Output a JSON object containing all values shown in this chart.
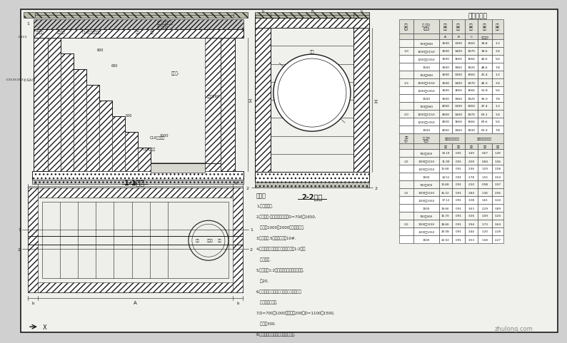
{
  "bg_color": "#d0d0d0",
  "paper_color": "#f0f0ec",
  "line_color": "#1a1a1a",
  "title": "工程数量表",
  "watermark": "zhulong.com",
  "note_title": "说明：",
  "notes": [
    "1.单位：毫米.",
    "2.适用条件:适用于跌落管径为D=700～1650,",
    "   跌差为1000～2000的圆、拱水管.",
    "3.井筒用厚.5水泥砂浆砌砖10#.",
    "4.抹面、勾缝、底座、筑三角灰均用1:2防水",
    "   水泥砂浆.",
    "5.井外墙用1:2防水水泥砂浆抹缝至井顶部,",
    "   厚20.",
    "6.跌落管管底以下超范围分用级配砂石，混",
    "   凝土或砌砖填实.",
    "7.D=700～1000，井盖厚200；D=1100～1500,",
    "   井盖厚300.",
    "8.爬梯需在安放踏步的同侧加设脚窝."
  ],
  "top_table_data": [
    [
      "",
      "700～900",
      "3600",
      "1300",
      "3060",
      "34.8",
      "1.2"
    ],
    [
      "1.0",
      "1000～1150",
      "3600",
      "1400",
      "3370",
      "39.6",
      "3.4"
    ],
    [
      "",
      "1200～1350",
      "3600",
      "1660",
      "3666",
      "44.6",
      "5.6"
    ],
    [
      "",
      "1500",
      "3600",
      "1960",
      "3920",
      "48.6",
      "7.8"
    ],
    [
      "",
      "700～900",
      "3600",
      "1300",
      "3060",
      "41.4",
      "1.2"
    ],
    [
      "1.5",
      "1000～1150",
      "3600",
      "1400",
      "3370",
      "46.3",
      "3.4"
    ],
    [
      "",
      "1200～1350",
      "3600",
      "1660",
      "3666",
      "51.8",
      "5.6"
    ],
    [
      "",
      "1500",
      "3600",
      "1960",
      "3920",
      "56.0",
      "7.8"
    ],
    [
      "",
      "700～900",
      "4000",
      "1300",
      "3060",
      "47.4",
      "1.2"
    ],
    [
      "2.0",
      "1000～1150",
      "4000",
      "1400",
      "3370",
      "63.1",
      "3.4"
    ],
    [
      "",
      "1200～1350",
      "4000",
      "1660",
      "3666",
      "69.6",
      "5.6"
    ],
    [
      "",
      "1500",
      "4000",
      "1960",
      "3930",
      "63.9",
      "7.8"
    ]
  ],
  "bot_table_data": [
    [
      "",
      "700～900",
      "10.19",
      "0.91",
      "1.69",
      "0.67",
      "1.49"
    ],
    [
      "1.0",
      "1000～1150",
      "11.99",
      "0.91",
      "2.09",
      "0.84",
      "1.94"
    ],
    [
      "",
      "1200～1350",
      "13.68",
      "0.91",
      "2.96",
      "1.09",
      "2.08"
    ],
    [
      "",
      "1500",
      "14.51",
      "0.91",
      "2.78",
      "1.55",
      "3.54"
    ],
    [
      "",
      "700～900",
      "13.68",
      "0.91",
      "2.50",
      "0.98",
      "3.97"
    ],
    [
      "1.5",
      "1000～1150",
      "16.22",
      "0.91",
      "2.84",
      "1.36",
      "2.96"
    ],
    [
      "",
      "1200～1350",
      "17.12",
      "0.91",
      "3.08",
      "1.61",
      "3.24"
    ],
    [
      "",
      "1500",
      "19.66",
      "0.91",
      "3.63",
      "2.29",
      "3.89"
    ],
    [
      "",
      "700～900",
      "16.70",
      "0.91",
      "3.06",
      "1.09",
      "3.20"
    ],
    [
      "2.0",
      "1000～1150",
      "18.66",
      "0.91",
      "3.94",
      "1.73",
      "3.64"
    ],
    [
      "",
      "1200～1350",
      "20.08",
      "0.91",
      "3.44",
      "1.20",
      "2.28"
    ],
    [
      "",
      "1500",
      "22.02",
      "0.91",
      "3.53",
      "1.58",
      "2.27"
    ]
  ]
}
